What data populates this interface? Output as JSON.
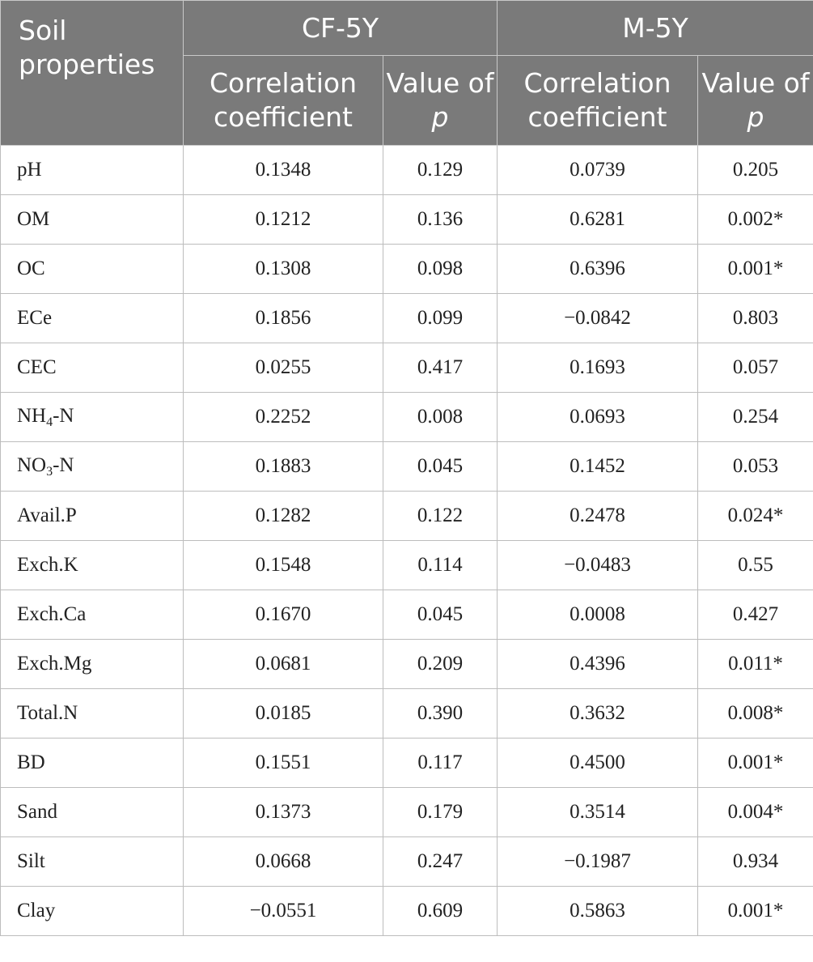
{
  "header": {
    "row_label": "Soil properties",
    "groups": [
      "CF-5Y",
      "M-5Y"
    ],
    "col_corr": "Correlation coefficient",
    "col_p_prefix": "Value of",
    "col_p_var": "p"
  },
  "rows": [
    {
      "prop": "pH",
      "prop_sub": "",
      "prop_suffix": "",
      "cf_r": "0.1348",
      "cf_p": "0.129",
      "m_r": "0.0739",
      "m_p": "0.205"
    },
    {
      "prop": "OM",
      "prop_sub": "",
      "prop_suffix": "",
      "cf_r": "0.1212",
      "cf_p": "0.136",
      "m_r": "0.6281",
      "m_p": "0.002*"
    },
    {
      "prop": "OC",
      "prop_sub": "",
      "prop_suffix": "",
      "cf_r": "0.1308",
      "cf_p": "0.098",
      "m_r": "0.6396",
      "m_p": "0.001*"
    },
    {
      "prop": "ECe",
      "prop_sub": "",
      "prop_suffix": "",
      "cf_r": "0.1856",
      "cf_p": "0.099",
      "m_r": "−0.0842",
      "m_p": "0.803"
    },
    {
      "prop": "CEC",
      "prop_sub": "",
      "prop_suffix": "",
      "cf_r": "0.0255",
      "cf_p": "0.417",
      "m_r": "0.1693",
      "m_p": "0.057"
    },
    {
      "prop": "NH",
      "prop_sub": "4",
      "prop_suffix": "-N",
      "cf_r": "0.2252",
      "cf_p": "0.008",
      "m_r": "0.0693",
      "m_p": "0.254"
    },
    {
      "prop": "NO",
      "prop_sub": "3",
      "prop_suffix": "-N",
      "cf_r": "0.1883",
      "cf_p": "0.045",
      "m_r": "0.1452",
      "m_p": "0.053"
    },
    {
      "prop": "Avail.P",
      "prop_sub": "",
      "prop_suffix": "",
      "cf_r": "0.1282",
      "cf_p": "0.122",
      "m_r": "0.2478",
      "m_p": "0.024*"
    },
    {
      "prop": "Exch.K",
      "prop_sub": "",
      "prop_suffix": "",
      "cf_r": "0.1548",
      "cf_p": "0.114",
      "m_r": "−0.0483",
      "m_p": "0.55"
    },
    {
      "prop": "Exch.Ca",
      "prop_sub": "",
      "prop_suffix": "",
      "cf_r": "0.1670",
      "cf_p": "0.045",
      "m_r": "0.0008",
      "m_p": "0.427"
    },
    {
      "prop": "Exch.Mg",
      "prop_sub": "",
      "prop_suffix": "",
      "cf_r": "0.0681",
      "cf_p": "0.209",
      "m_r": "0.4396",
      "m_p": "0.011*"
    },
    {
      "prop": "Total.N",
      "prop_sub": "",
      "prop_suffix": "",
      "cf_r": "0.0185",
      "cf_p": "0.390",
      "m_r": "0.3632",
      "m_p": "0.008*"
    },
    {
      "prop": "BD",
      "prop_sub": "",
      "prop_suffix": "",
      "cf_r": "0.1551",
      "cf_p": "0.117",
      "m_r": "0.4500",
      "m_p": "0.001*"
    },
    {
      "prop": "Sand",
      "prop_sub": "",
      "prop_suffix": "",
      "cf_r": "0.1373",
      "cf_p": "0.179",
      "m_r": "0.3514",
      "m_p": "0.004*"
    },
    {
      "prop": "Silt",
      "prop_sub": "",
      "prop_suffix": "",
      "cf_r": "0.0668",
      "cf_p": "0.247",
      "m_r": "−0.1987",
      "m_p": "0.934"
    },
    {
      "prop": "Clay",
      "prop_sub": "",
      "prop_suffix": "",
      "cf_r": "−0.0551",
      "cf_p": "0.609",
      "m_r": "0.5863",
      "m_p": "0.001*"
    }
  ]
}
